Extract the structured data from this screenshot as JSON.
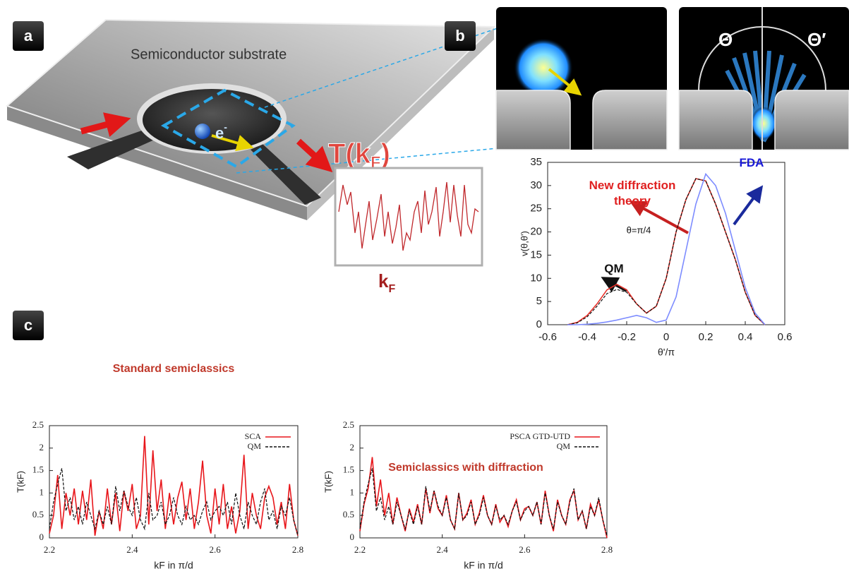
{
  "panels": [
    "a",
    "b",
    "c"
  ],
  "illustration": {
    "substrate_label": "Semiconductor substrate",
    "electron": {
      "symbol": "e",
      "charge": "-"
    },
    "transmission": {
      "prefix": "T(k",
      "subscript": "F",
      "suffix": ")"
    },
    "inset_xlabel": {
      "prefix": "k",
      "subscript": "F"
    },
    "angle_in": "Θ",
    "angle_out": "Θ′"
  },
  "chart_data": [
    {
      "type": "line",
      "xlabel": "θ'/π",
      "ylabel": "v(θ,θ')",
      "annotation": "θ=π/4",
      "x": [
        -0.5,
        -0.45,
        -0.4,
        -0.35,
        -0.3,
        -0.25,
        -0.2,
        -0.15,
        -0.1,
        -0.05,
        0,
        0.05,
        0.1,
        0.15,
        0.2,
        0.25,
        0.3,
        0.35,
        0.4,
        0.45,
        0.5
      ],
      "series": [
        {
          "name": "New diffraction theory",
          "color": "#e8312a",
          "values": [
            0,
            0.5,
            2,
            4.5,
            7.5,
            8.7,
            7.5,
            4.5,
            2.5,
            4,
            10,
            20,
            27,
            31.5,
            31,
            26,
            20,
            14,
            7,
            2,
            0
          ]
        },
        {
          "name": "QM",
          "color": "#111111",
          "style": "dashed",
          "values": [
            0,
            0.4,
            1.7,
            4,
            6.7,
            7.6,
            7,
            4.5,
            2.5,
            4,
            10,
            20,
            27,
            31.5,
            31,
            26,
            20,
            14,
            7,
            2,
            0
          ]
        },
        {
          "name": "FDA",
          "color": "#7d8cff",
          "values": [
            0,
            0,
            0.1,
            0.3,
            0.6,
            1,
            1.5,
            2,
            1.5,
            0.5,
            1,
            6,
            16,
            26,
            32.5,
            30,
            24,
            16,
            8,
            2.5,
            0
          ]
        }
      ],
      "xlim": [
        -0.6,
        0.6
      ],
      "xticks": [
        -0.6,
        -0.4,
        -0.2,
        0,
        0.2,
        0.4,
        0.6
      ],
      "ylim": [
        0,
        35
      ],
      "yticks": [
        0,
        5,
        10,
        15,
        20,
        25,
        30,
        35
      ]
    },
    {
      "type": "line",
      "title": "Standard semiclassics",
      "xlabel": "kF in π/d",
      "ylabel": "T(kF)",
      "legend": "upper right",
      "x": [
        2.2,
        2.21,
        2.22,
        2.23,
        2.24,
        2.25,
        2.26,
        2.27,
        2.28,
        2.29,
        2.3,
        2.31,
        2.32,
        2.33,
        2.34,
        2.35,
        2.36,
        2.37,
        2.38,
        2.39,
        2.4,
        2.41,
        2.42,
        2.43,
        2.44,
        2.45,
        2.46,
        2.47,
        2.48,
        2.49,
        2.5,
        2.51,
        2.52,
        2.53,
        2.54,
        2.55,
        2.56,
        2.57,
        2.58,
        2.59,
        2.6,
        2.61,
        2.62,
        2.63,
        2.64,
        2.65,
        2.66,
        2.67,
        2.68,
        2.69,
        2.7,
        2.71,
        2.72,
        2.73,
        2.74,
        2.75,
        2.76,
        2.77,
        2.78,
        2.79,
        2.8
      ],
      "series": [
        {
          "name": "SCA",
          "color": "#e8161b",
          "values": [
            0.1,
            0.5,
            1.4,
            0.2,
            1.0,
            0.5,
            1.1,
            0.3,
            1.05,
            0.4,
            1.3,
            0.05,
            0.6,
            0.2,
            1.1,
            0.3,
            1.0,
            0.15,
            1.05,
            0.6,
            1.2,
            0.2,
            0.5,
            2.27,
            0.3,
            1.95,
            0.6,
            1.3,
            0.2,
            1.0,
            0.3,
            0.9,
            1.25,
            0.4,
            1.1,
            0.2,
            0.8,
            1.72,
            0.5,
            0.1,
            1.1,
            0.3,
            1.2,
            0.2,
            0.7,
            0.1,
            0.6,
            1.85,
            0.2,
            1.0,
            0.5,
            0.2,
            0.9,
            1.15,
            0.9,
            0.3,
            0.8,
            0.2,
            1.2,
            0.4,
            0.05
          ]
        },
        {
          "name": "QM",
          "color": "#111111",
          "style": "dashed",
          "values": [
            0.2,
            0.8,
            1.2,
            1.55,
            0.6,
            0.9,
            0.4,
            0.7,
            0.3,
            0.8,
            0.5,
            0.2,
            0.6,
            0.3,
            0.7,
            0.3,
            1.15,
            0.6,
            1.05,
            0.7,
            0.5,
            0.9,
            0.4,
            0.2,
            1.0,
            0.4,
            0.5,
            0.8,
            0.3,
            0.5,
            0.9,
            0.5,
            0.3,
            0.7,
            0.4,
            0.5,
            0.3,
            0.6,
            0.8,
            0.4,
            0.6,
            0.7,
            0.5,
            0.8,
            0.3,
            1.0,
            0.5,
            0.2,
            0.8,
            0.5,
            0.3,
            0.8,
            1.1,
            0.4,
            0.6,
            0.2,
            0.7,
            0.5,
            0.9,
            0.4,
            0.05
          ]
        }
      ],
      "xlim": [
        2.2,
        2.8
      ],
      "xticks": [
        2.2,
        2.4,
        2.6,
        2.8
      ],
      "ylim": [
        0,
        2.5
      ],
      "yticks": [
        0,
        0.5,
        1,
        1.5,
        2,
        2.5
      ]
    },
    {
      "type": "line",
      "annotation": "Semiclassics with diffraction",
      "xlabel": "kF in π/d",
      "ylabel": "T(kF)",
      "legend": "upper right",
      "x": [
        2.2,
        2.21,
        2.22,
        2.23,
        2.24,
        2.25,
        2.26,
        2.27,
        2.28,
        2.29,
        2.3,
        2.31,
        2.32,
        2.33,
        2.34,
        2.35,
        2.36,
        2.37,
        2.38,
        2.39,
        2.4,
        2.41,
        2.42,
        2.43,
        2.44,
        2.45,
        2.46,
        2.47,
        2.48,
        2.49,
        2.5,
        2.51,
        2.52,
        2.53,
        2.54,
        2.55,
        2.56,
        2.57,
        2.58,
        2.59,
        2.6,
        2.61,
        2.62,
        2.63,
        2.64,
        2.65,
        2.66,
        2.67,
        2.68,
        2.69,
        2.7,
        2.71,
        2.72,
        2.73,
        2.74,
        2.75,
        2.76,
        2.77,
        2.78,
        2.79,
        2.8
      ],
      "series": [
        {
          "name": "PSCA GTD-UTD",
          "color": "#e8161b",
          "values": [
            0.15,
            0.75,
            1.1,
            1.8,
            0.7,
            1.3,
            0.5,
            1.0,
            0.3,
            0.9,
            0.5,
            0.15,
            0.65,
            0.35,
            0.75,
            0.3,
            1.1,
            0.55,
            1.05,
            0.65,
            0.5,
            0.95,
            0.4,
            0.2,
            1.0,
            0.4,
            0.55,
            0.85,
            0.3,
            0.55,
            0.95,
            0.5,
            0.3,
            0.75,
            0.35,
            0.5,
            0.25,
            0.6,
            0.85,
            0.4,
            0.65,
            0.7,
            0.5,
            0.8,
            0.3,
            1.05,
            0.5,
            0.15,
            0.85,
            0.5,
            0.3,
            0.85,
            1.05,
            0.4,
            0.6,
            0.2,
            0.75,
            0.5,
            0.85,
            0.4,
            0.0
          ]
        },
        {
          "name": "QM",
          "color": "#111111",
          "style": "dashed",
          "values": [
            0.2,
            0.8,
            1.2,
            1.55,
            0.6,
            0.9,
            0.4,
            0.7,
            0.3,
            0.8,
            0.5,
            0.2,
            0.6,
            0.3,
            0.7,
            0.3,
            1.15,
            0.6,
            1.05,
            0.7,
            0.5,
            0.9,
            0.4,
            0.2,
            1.0,
            0.4,
            0.5,
            0.8,
            0.3,
            0.5,
            0.9,
            0.5,
            0.3,
            0.7,
            0.4,
            0.5,
            0.3,
            0.6,
            0.8,
            0.4,
            0.6,
            0.7,
            0.5,
            0.8,
            0.3,
            1.0,
            0.5,
            0.2,
            0.8,
            0.5,
            0.3,
            0.8,
            1.1,
            0.4,
            0.6,
            0.2,
            0.7,
            0.5,
            0.9,
            0.4,
            0.05
          ]
        }
      ],
      "xlim": [
        2.2,
        2.8
      ],
      "xticks": [
        2.2,
        2.4,
        2.6,
        2.8
      ],
      "ylim": [
        0,
        2.5
      ],
      "yticks": [
        0,
        0.5,
        1,
        1.5,
        2,
        2.5
      ]
    }
  ]
}
